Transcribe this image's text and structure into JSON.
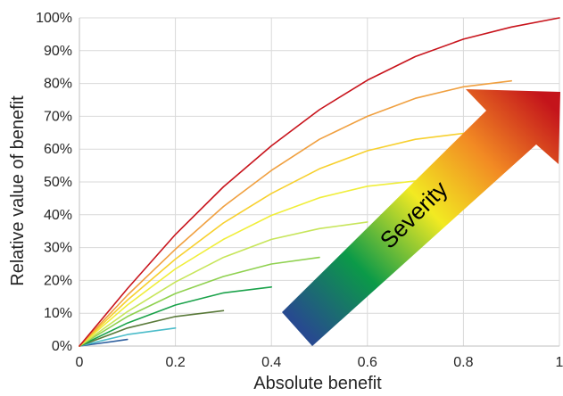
{
  "chart_data": {
    "type": "line",
    "xlabel": "Absolute benefit",
    "ylabel": "Relative value of benefit",
    "xlim": [
      0,
      1
    ],
    "ylim": [
      0,
      1
    ],
    "x_ticks": [
      "0",
      "0.2",
      "0.4",
      "0.6",
      "0.8",
      "1"
    ],
    "y_ticks": [
      "0%",
      "10%",
      "20%",
      "30%",
      "40%",
      "50%",
      "60%",
      "70%",
      "80%",
      "90%",
      "100%"
    ],
    "grid": true,
    "annotation": "Severity",
    "series": [
      {
        "color": "#2e5f9e",
        "x": [
          0,
          0.1
        ],
        "y": [
          0,
          0.02
        ]
      },
      {
        "color": "#4bbcc9",
        "x": [
          0,
          0.1,
          0.2
        ],
        "y": [
          0,
          0.035,
          0.055
        ]
      },
      {
        "color": "#5a7a3a",
        "x": [
          0,
          0.1,
          0.2,
          0.3
        ],
        "y": [
          0,
          0.055,
          0.09,
          0.108
        ]
      },
      {
        "color": "#1aa24a",
        "x": [
          0,
          0.1,
          0.2,
          0.3,
          0.4
        ],
        "y": [
          0,
          0.07,
          0.125,
          0.162,
          0.18
        ]
      },
      {
        "color": "#8fd14f",
        "x": [
          0,
          0.1,
          0.2,
          0.3,
          0.4,
          0.5
        ],
        "y": [
          0,
          0.09,
          0.16,
          0.212,
          0.25,
          0.27
        ]
      },
      {
        "color": "#c7e55a",
        "x": [
          0,
          0.1,
          0.2,
          0.3,
          0.4,
          0.5,
          0.6
        ],
        "y": [
          0,
          0.105,
          0.195,
          0.27,
          0.325,
          0.358,
          0.378
        ]
      },
      {
        "color": "#f0ee3a",
        "x": [
          0,
          0.1,
          0.2,
          0.3,
          0.4,
          0.5,
          0.6,
          0.7
        ],
        "y": [
          0,
          0.125,
          0.235,
          0.325,
          0.398,
          0.452,
          0.487,
          0.503
        ]
      },
      {
        "color": "#f7d02e",
        "x": [
          0,
          0.1,
          0.2,
          0.3,
          0.4,
          0.5,
          0.6,
          0.7,
          0.8
        ],
        "y": [
          0,
          0.14,
          0.265,
          0.375,
          0.465,
          0.54,
          0.595,
          0.63,
          0.648
        ]
      },
      {
        "color": "#f0a040",
        "x": [
          0,
          0.1,
          0.2,
          0.3,
          0.4,
          0.5,
          0.6,
          0.7,
          0.8,
          0.9
        ],
        "y": [
          0,
          0.155,
          0.295,
          0.425,
          0.535,
          0.63,
          0.7,
          0.755,
          0.79,
          0.808
        ]
      },
      {
        "color": "#c8141c",
        "x": [
          0,
          0.1,
          0.2,
          0.3,
          0.4,
          0.5,
          0.6,
          0.7,
          0.8,
          0.9,
          1.0
        ],
        "y": [
          0,
          0.175,
          0.34,
          0.485,
          0.61,
          0.72,
          0.81,
          0.882,
          0.935,
          0.972,
          1.0
        ]
      }
    ]
  }
}
